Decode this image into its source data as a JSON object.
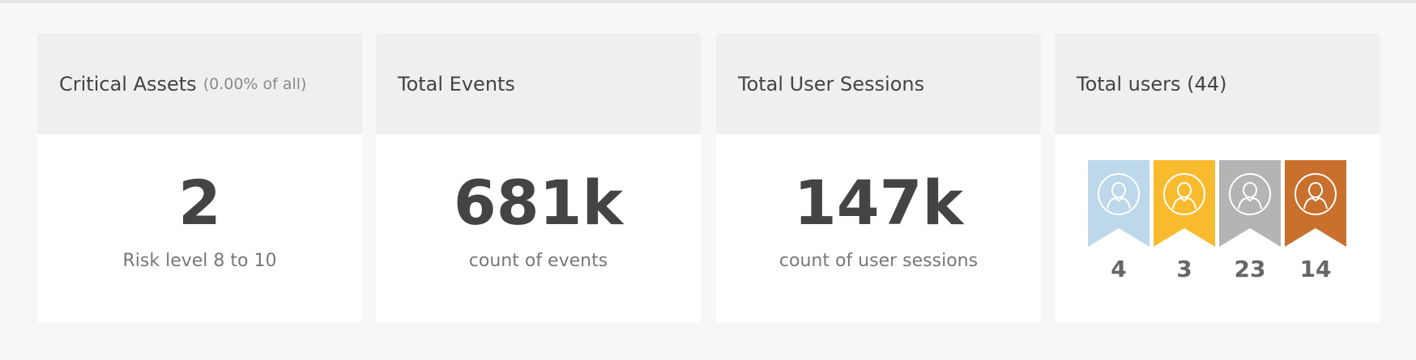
{
  "cards": [
    {
      "title": "Critical Assets",
      "subtitle": "(0.00% of all)",
      "value": 2,
      "caption": "Risk level 8 to 10"
    },
    {
      "title": "Total Events",
      "value": "681k",
      "caption": "count of events"
    },
    {
      "title": "Total User Sessions",
      "value": "147k",
      "caption": "count of user sessions"
    },
    {
      "title": "Total users (44)",
      "badges": [
        {
          "count": 4,
          "color": "#bcd8ea"
        },
        {
          "count": 3,
          "color": "#f9bb2e"
        },
        {
          "count": 23,
          "color": "#b4b4b4"
        },
        {
          "count": 14,
          "color": "#c8702c"
        }
      ]
    }
  ]
}
